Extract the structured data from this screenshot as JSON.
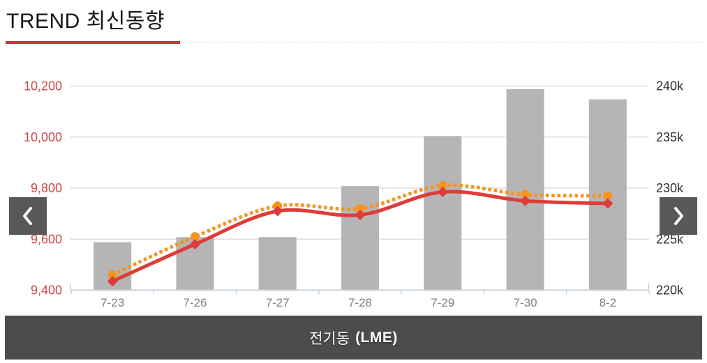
{
  "header": {
    "title": "TREND 최신동향"
  },
  "footer": {
    "name_kr": "전기동",
    "name_en": "(LME)"
  },
  "colors": {
    "title_text": "#141414",
    "title_underline": "#c0393b",
    "grid": "#d9d9d9",
    "axis_line": "#c7d3dc",
    "bar": "#b5b5b5",
    "line_red": "#dd3c38",
    "line_orange": "#f7941e",
    "left_axis_text": "#cf4747",
    "right_axis_text": "#2f2f2f",
    "x_axis_text": "#7e7e7e",
    "nav_button_bg": "#595959",
    "nav_chevron": "#ffffff",
    "footer_bg": "#4c4c4c",
    "footer_text": "#ffffff"
  },
  "chart_data": {
    "type": "combo",
    "title": "전기동 (LME)",
    "grid": true,
    "legend": false,
    "categories": [
      "7-23",
      "7-26",
      "7-27",
      "7-28",
      "7-29",
      "7-30",
      "8-2"
    ],
    "series": [
      {
        "name": "gray-bars",
        "type": "bar",
        "axis": "right",
        "values": [
          224.7,
          225.2,
          225.2,
          230.2,
          235.1,
          239.7,
          238.7
        ]
      },
      {
        "name": "red-solid-line",
        "type": "line",
        "axis": "left",
        "marker": "diamond",
        "line_style": "solid",
        "values": [
          9435,
          9580,
          9710,
          9695,
          9785,
          9750,
          9740
        ]
      },
      {
        "name": "orange-dotted-line",
        "type": "line",
        "axis": "left",
        "marker": "circle",
        "line_style": "dotted",
        "values": [
          9460,
          9610,
          9730,
          9720,
          9810,
          9775,
          9770
        ]
      }
    ],
    "left_axis": {
      "min": 9400,
      "max": 10200,
      "tick_step": 200,
      "tick_labels": [
        "9,400",
        "9,600",
        "9,800",
        "10,000",
        "10,200"
      ]
    },
    "right_axis": {
      "min": 220,
      "max": 240,
      "tick_step": 5,
      "unit": "k",
      "tick_labels": [
        "220k",
        "225k",
        "230k",
        "235k",
        "240k"
      ]
    }
  }
}
